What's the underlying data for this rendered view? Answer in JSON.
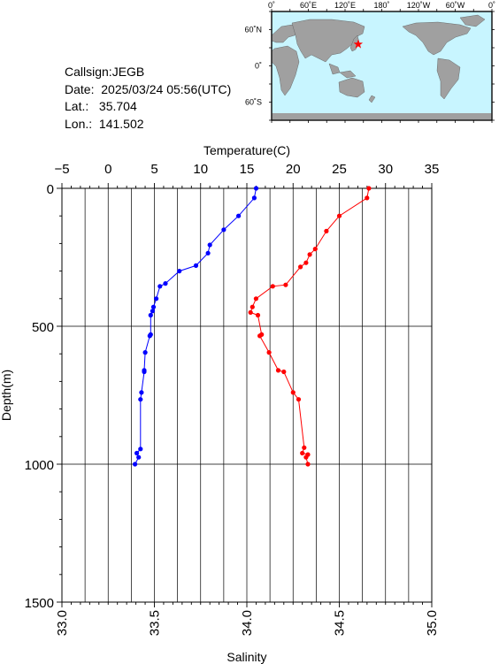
{
  "station": {
    "callsign": "Callsign:JEGB",
    "date": "Date:  2025/03/24 05:56(UTC)",
    "lat": "Lat.:   35.704",
    "lon": "Lon.:  141.502"
  },
  "map": {
    "lon_labels": [
      "0˚",
      "60˚E",
      "120˚E",
      "180˚",
      "120˚W",
      "60˚W",
      "0˚"
    ],
    "lat_labels": [
      "60˚N",
      "0˚",
      "60˚S"
    ],
    "ocean_color": "#c8f5ff",
    "land_color": "#a0a0a0",
    "marker_color": "#ff0000",
    "marker": {
      "lon": 141.5,
      "lat": 35.7
    }
  },
  "chart_data": {
    "type": "line",
    "ylabel": "Depth(m)",
    "ylim": [
      1500,
      0
    ],
    "yticks": [
      "0",
      "500",
      "1000",
      "1500"
    ],
    "top_axis": {
      "label": "Temperature(C)",
      "lim": [
        -5,
        35
      ],
      "ticks": [
        "−5",
        "0",
        "5",
        "10",
        "15",
        "20",
        "25",
        "30",
        "35"
      ]
    },
    "bottom_axis": {
      "label": "Salinity",
      "lim": [
        33.0,
        35.0
      ],
      "ticks": [
        "33.0",
        "33.5",
        "34.0",
        "34.5",
        "35.0"
      ]
    },
    "grid": true,
    "series": [
      {
        "color": "#0000ff",
        "axis": "temperature",
        "x": [
          16.0,
          15.8,
          14.1,
          12.5,
          11.0,
          10.8,
          9.5,
          7.7,
          6.2,
          5.6,
          5.2,
          4.9,
          4.8,
          4.6,
          4.6,
          4.5,
          4.0,
          3.9,
          3.9,
          3.6,
          3.5,
          3.5,
          3.1,
          3.3,
          2.9
        ],
        "y": [
          0,
          35,
          100,
          150,
          205,
          235,
          280,
          300,
          345,
          355,
          400,
          430,
          445,
          460,
          530,
          535,
          595,
          660,
          665,
          740,
          765,
          945,
          960,
          975,
          1000
        ],
        "x_scaled": [
          0.525,
          0.52,
          0.478,
          0.438,
          0.4,
          0.395,
          0.363,
          0.318,
          0.28,
          0.265,
          0.255,
          0.248,
          0.245,
          0.24,
          0.24,
          0.238,
          0.225,
          0.223,
          0.223,
          0.215,
          0.213,
          0.213,
          0.203,
          0.208,
          0.198
        ]
      },
      {
        "color": "#ff0000",
        "axis": "salinity",
        "x": [
          34.66,
          34.65,
          34.5,
          34.43,
          34.37,
          34.34,
          34.32,
          34.29,
          34.21,
          34.14,
          34.05,
          34.03,
          34.02,
          34.06,
          34.08,
          34.07,
          34.12,
          34.17,
          34.2,
          34.25,
          34.28,
          34.31,
          34.3,
          34.33,
          34.32,
          34.33
        ],
        "y": [
          0,
          35,
          100,
          155,
          220,
          240,
          270,
          285,
          350,
          355,
          400,
          430,
          450,
          460,
          530,
          535,
          595,
          660,
          665,
          740,
          765,
          940,
          960,
          965,
          975,
          1000
        ],
        "x_scaled": [
          0.83,
          0.825,
          0.75,
          0.715,
          0.685,
          0.67,
          0.66,
          0.645,
          0.605,
          0.57,
          0.525,
          0.515,
          0.51,
          0.53,
          0.54,
          0.535,
          0.56,
          0.585,
          0.6,
          0.625,
          0.64,
          0.655,
          0.65,
          0.665,
          0.66,
          0.665
        ]
      }
    ]
  }
}
